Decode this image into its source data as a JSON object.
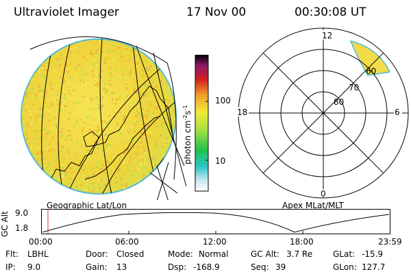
{
  "header": {
    "instrument": "Ultraviolet Imager",
    "date": "17 Nov 00",
    "time": "00:30:08 UT"
  },
  "colorbar": {
    "unit": "photon cm",
    "unit_sup1": "-2",
    "unit_mid": "s",
    "unit_sup2": "-1",
    "tick_labels": [
      "100",
      "10"
    ]
  },
  "left_panel": {
    "label": "Geographic Lat/Lon"
  },
  "right_panel": {
    "label": "Apex MLat/MLT",
    "mlt_labels": {
      "top": "12",
      "left": "18",
      "right": "6",
      "bottom": "0"
    },
    "lat_labels": [
      "60",
      "70",
      "80"
    ]
  },
  "altitude_plot": {
    "ylabel": "GC Alt",
    "y_ticks": [
      "9.0",
      "1.8"
    ],
    "x_ticks": [
      "00:00",
      "06:00",
      "12:00",
      "18:00",
      "23:59"
    ]
  },
  "footer": {
    "flt_label": "Flt:",
    "flt_value": "LBHL",
    "ip_label": "IP:",
    "ip_value": "9.0",
    "door_label": "Door:",
    "door_value": "Closed",
    "gain_label": "Gain:",
    "gain_value": "13",
    "mode_label": "Mode:",
    "mode_value": "Normal",
    "dsp_label": "Dsp:",
    "dsp_value": "-168.9",
    "gcalt_label": "GC Alt:",
    "gcalt_value": "3.7 Re",
    "seq_label": "Seq:",
    "seq_value": "39",
    "glat_label": "GLat:",
    "glat_value": "-15.9",
    "glon_label": "GLon:",
    "glon_value": "127.7"
  },
  "colors": {
    "disk_base": "#f2dc48",
    "disk_edge": "#4fb9d8",
    "marker": "#d23a3a"
  }
}
